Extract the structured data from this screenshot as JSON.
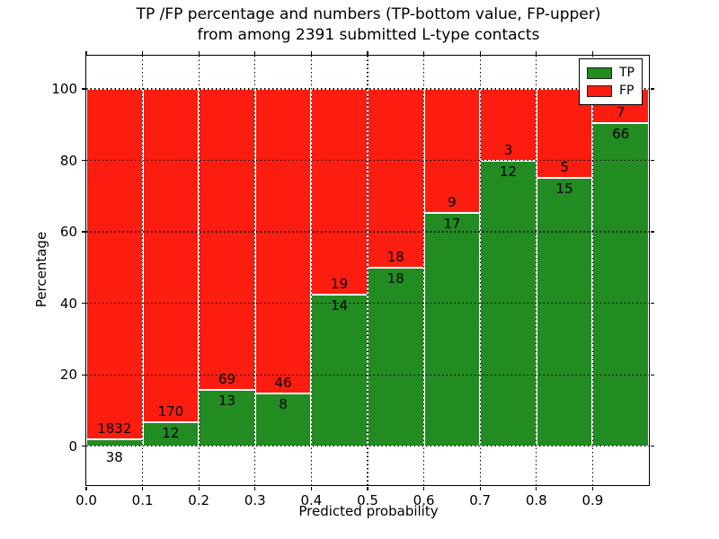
{
  "chart_data": {
    "type": "bar",
    "stacked": true,
    "normalized_to_percent": true,
    "title_line1": "TP /FP percentage and numbers (TP-bottom value, FP-upper)",
    "title_line2": "from among 2391 submitted L-type contacts",
    "xlabel": "Predicted probability",
    "ylabel": "Percentage",
    "total_submitted": 2391,
    "bin_ranges": [
      "0.0-0.1",
      "0.1-0.2",
      "0.2-0.3",
      "0.3-0.4",
      "0.4-0.5",
      "0.5-0.6",
      "0.6-0.7",
      "0.7-0.8",
      "0.8-0.9",
      "0.9-1.0"
    ],
    "series": [
      {
        "name": "TP",
        "color": "#228b22",
        "values": [
          38,
          12,
          13,
          8,
          14,
          18,
          17,
          12,
          15,
          66
        ]
      },
      {
        "name": "FP",
        "color": "#fb1d10",
        "values": [
          1832,
          170,
          69,
          46,
          19,
          18,
          9,
          3,
          5,
          7
        ]
      }
    ],
    "x_tick_labels": [
      "0.0",
      "0.1",
      "0.2",
      "0.3",
      "0.4",
      "0.5",
      "0.6",
      "0.7",
      "0.8",
      "0.9"
    ],
    "y_ticks": [
      0,
      20,
      40,
      60,
      80,
      100
    ],
    "xlim": [
      0.0,
      1.0
    ],
    "ylim": [
      -10.9,
      109.3
    ],
    "grid": "dotted",
    "legend_position": "upper right"
  }
}
